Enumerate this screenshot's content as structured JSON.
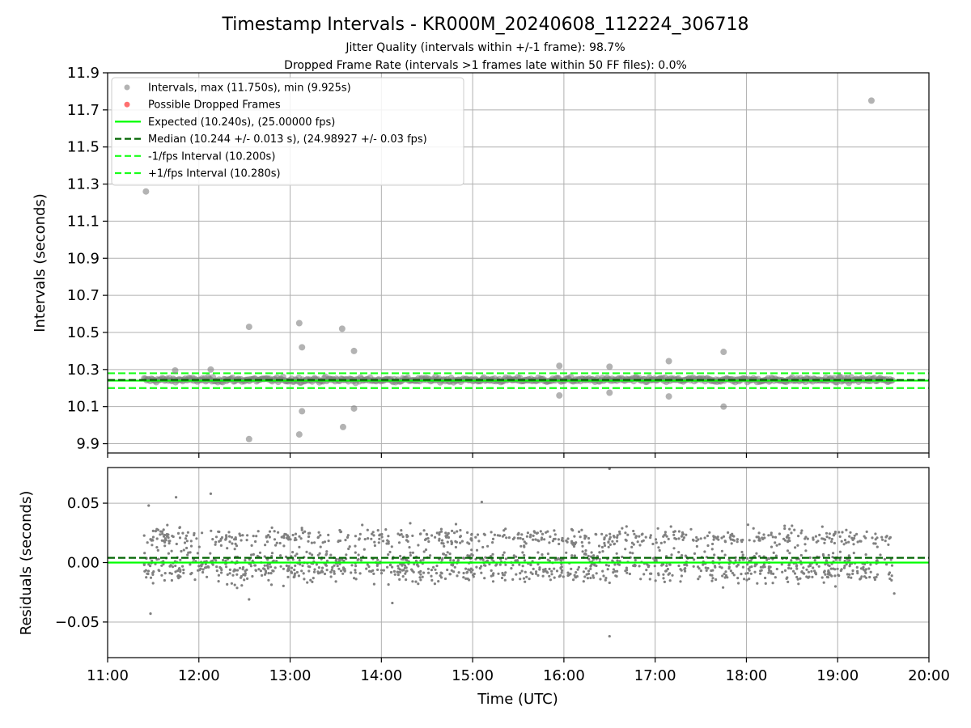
{
  "chart_data": [
    {
      "type": "scatter",
      "title": "Timestamp Intervals - KR000M_20240608_112224_306718",
      "subtitle_lines": [
        "Jitter Quality (intervals within +/-1 frame): 98.7%",
        "Dropped Frame Rate (intervals >1 frames late within 50 FF files): 0.0%"
      ],
      "xlabel": "",
      "ylabel": "Intervals (seconds)",
      "xlim_hours": [
        11.0,
        20.0
      ],
      "ylim": [
        9.85,
        11.9
      ],
      "yticks": [
        9.9,
        10.1,
        10.3,
        10.5,
        10.7,
        10.9,
        11.1,
        11.3,
        11.5,
        11.7,
        11.9
      ],
      "ytick_labels": [
        "9.9",
        "10.1",
        "10.3",
        "10.5",
        "10.7",
        "10.9",
        "11.1",
        "11.3",
        "11.5",
        "11.7",
        "11.9"
      ],
      "grid": true,
      "legend_placement": "upper-left",
      "legend": [
        "Intervals, max (11.750s), min (9.925s)",
        "Possible Dropped Frames",
        "Expected (10.240s), (25.00000 fps)",
        "Median (10.244 +/- 0.013 s), (24.98927 +/- 0.03 fps)",
        "-1/fps Interval (10.200s)",
        "+1/fps Interval (10.280s)"
      ],
      "series_colors": {
        "intervals": "#808080",
        "dropped": "#ff4c4c",
        "expected": "#00ff00",
        "median": "#006400",
        "bounds": "#19ff19"
      },
      "reference_lines": {
        "expected": 10.24,
        "median": 10.244,
        "minus_1_fps": 10.2,
        "plus_1_fps": 10.28
      },
      "time_range_hours": [
        11.4,
        19.6
      ],
      "band": {
        "center": 10.244,
        "min": 10.205,
        "max": 10.282
      },
      "outliers": [
        {
          "x": 11.42,
          "y": 11.26
        },
        {
          "x": 11.74,
          "y": 10.295
        },
        {
          "x": 12.13,
          "y": 10.3
        },
        {
          "x": 12.55,
          "y": 10.53
        },
        {
          "x": 12.55,
          "y": 9.925
        },
        {
          "x": 13.1,
          "y": 10.55
        },
        {
          "x": 13.13,
          "y": 10.42
        },
        {
          "x": 13.13,
          "y": 10.075
        },
        {
          "x": 13.1,
          "y": 9.95
        },
        {
          "x": 13.57,
          "y": 10.52
        },
        {
          "x": 13.58,
          "y": 9.99
        },
        {
          "x": 13.7,
          "y": 10.4
        },
        {
          "x": 13.7,
          "y": 10.09
        },
        {
          "x": 15.95,
          "y": 10.32
        },
        {
          "x": 15.95,
          "y": 10.16
        },
        {
          "x": 16.5,
          "y": 10.315
        },
        {
          "x": 16.5,
          "y": 10.175
        },
        {
          "x": 17.15,
          "y": 10.345
        },
        {
          "x": 17.15,
          "y": 10.155
        },
        {
          "x": 17.75,
          "y": 10.395
        },
        {
          "x": 17.75,
          "y": 10.1
        },
        {
          "x": 19.37,
          "y": 11.75
        }
      ]
    },
    {
      "type": "scatter",
      "title": "",
      "xlabel": "Time (UTC)",
      "ylabel": "Residuals (seconds)",
      "xlim_hours": [
        11.0,
        20.0
      ],
      "xticks_hours": [
        11,
        12,
        13,
        14,
        15,
        16,
        17,
        18,
        19,
        20
      ],
      "xtick_labels": [
        "11:00",
        "12:00",
        "13:00",
        "14:00",
        "15:00",
        "16:00",
        "17:00",
        "18:00",
        "19:00",
        "20:00"
      ],
      "ylim": [
        -0.08,
        0.08
      ],
      "yticks": [
        -0.05,
        0.0,
        0.05
      ],
      "ytick_labels": [
        "−0.05",
        "0.00",
        "0.05"
      ],
      "grid": true,
      "series_colors": {
        "residuals": "#808080",
        "zero": "#00ff00",
        "median": "#006400"
      },
      "reference_lines": {
        "zero": 0.0,
        "median": 0.004
      },
      "residual_clusters": [
        {
          "center": 0.021,
          "spread": 0.006
        },
        {
          "center": 0.002,
          "spread": 0.006
        },
        {
          "center": -0.008,
          "spread": 0.007
        }
      ],
      "outliers": [
        {
          "x": 11.45,
          "y": 0.048
        },
        {
          "x": 11.47,
          "y": -0.043
        },
        {
          "x": 11.75,
          "y": 0.055
        },
        {
          "x": 12.13,
          "y": 0.058
        },
        {
          "x": 15.1,
          "y": 0.051
        },
        {
          "x": 16.5,
          "y": 0.079
        },
        {
          "x": 16.5,
          "y": -0.062
        },
        {
          "x": 14.12,
          "y": -0.034
        },
        {
          "x": 12.55,
          "y": -0.031
        },
        {
          "x": 19.62,
          "y": -0.026
        }
      ]
    }
  ]
}
